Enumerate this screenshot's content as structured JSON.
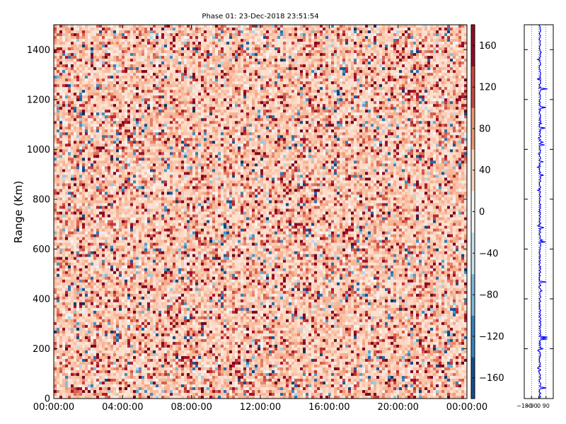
{
  "chart_data": [
    {
      "type": "heatmap",
      "title": "Phase 01: 23-Dec-2018 23:51:54",
      "xlabel": "",
      "ylabel": "Range (Km)",
      "x_ticks": [
        "00:00:00",
        "04:00:00",
        "08:00:00",
        "12:00:00",
        "16:00:00",
        "20:00:00",
        "00:00:00"
      ],
      "y_ticks": [
        0,
        200,
        400,
        600,
        800,
        1000,
        1200,
        1400
      ],
      "ylim": [
        0,
        1500
      ],
      "x_range_hours": [
        0,
        24
      ],
      "value_range": [
        -180,
        180
      ],
      "colormap": "RdBu_r",
      "colorbar_ticks": [
        160,
        120,
        80,
        40,
        0,
        -40,
        -80,
        -120,
        -160
      ],
      "colorbar_ticks_text": [
        "160",
        "120",
        "80",
        "40",
        "0",
        "−40",
        "−80",
        "−120",
        "−160"
      ],
      "grid": false,
      "note_data": "noisy phase field, values mostly between 20 and 60 degrees with scattered outliers across full range"
    },
    {
      "type": "line",
      "title": "",
      "xlabel": "",
      "ylabel": "",
      "x_ticks_text": [
        "−180",
        "−90",
        "0",
        "90"
      ],
      "x_ticks": [
        -180,
        -90,
        0,
        90
      ],
      "ylim": [
        0,
        1500
      ],
      "series_color": "#0000ff",
      "grid": true,
      "grid_style": "dotted"
    }
  ],
  "colors": {
    "line": "#0000ff",
    "axis": "#000000",
    "background": "#ffffff"
  }
}
